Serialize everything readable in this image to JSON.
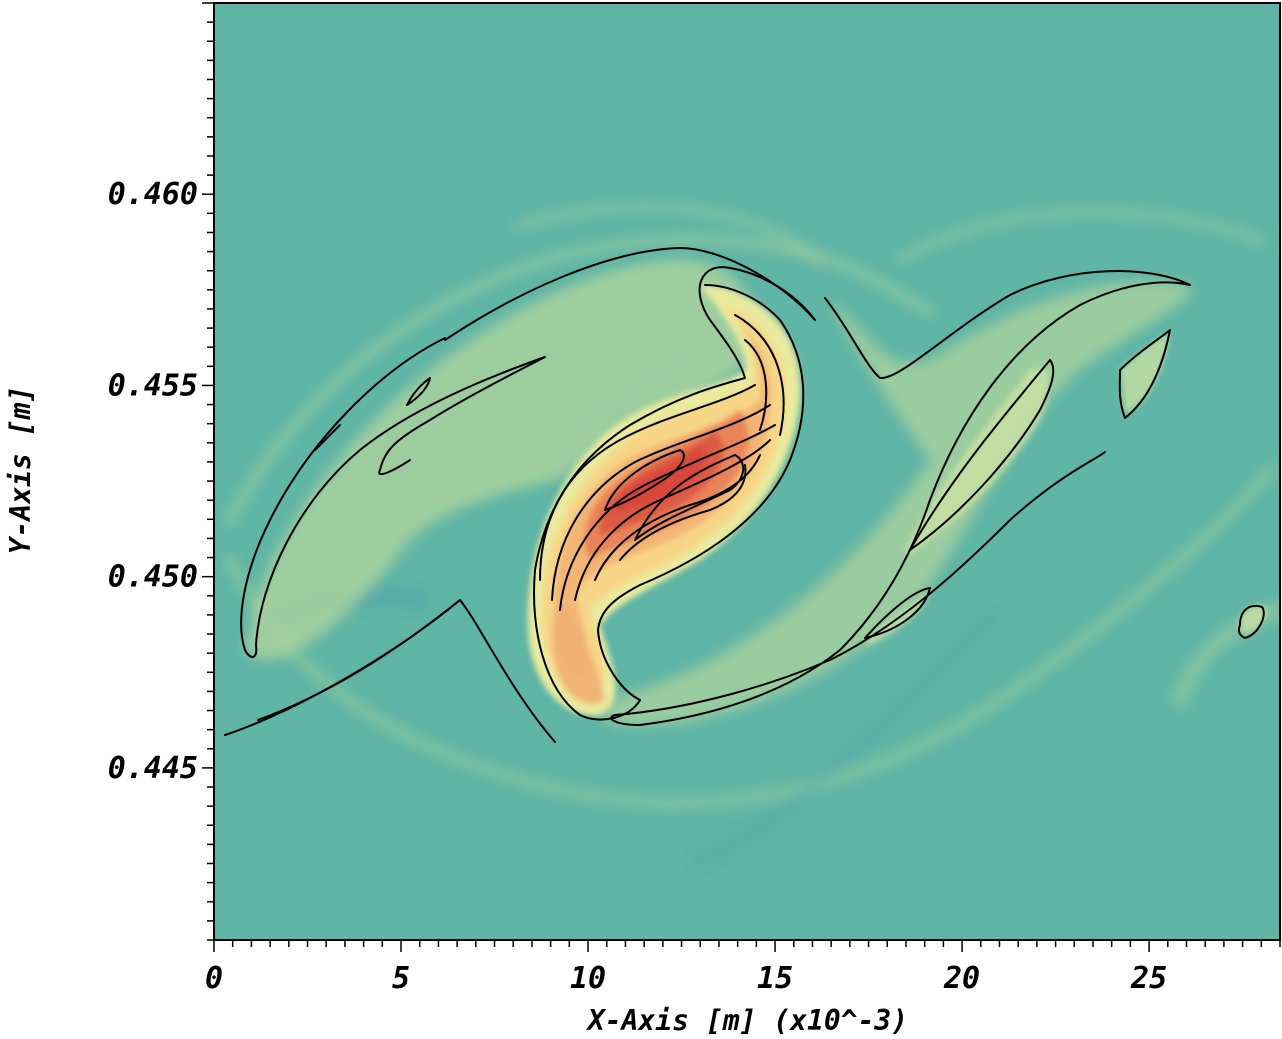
{
  "chart_data": {
    "type": "heatmap",
    "title": "",
    "xlabel": "X-Axis [m] (x10^-3)",
    "ylabel": "Y-Axis [m]",
    "xlim": [
      0,
      28.5
    ],
    "ylim": [
      0.4405,
      0.465
    ],
    "x_ticks": [
      0,
      5,
      10,
      15,
      20,
      25
    ],
    "x_tick_labels": [
      "0",
      "5",
      "10",
      "15",
      "20",
      "25"
    ],
    "y_ticks": [
      0.445,
      0.45,
      0.455,
      0.46
    ],
    "y_tick_labels": [
      "0.445",
      "0.450",
      "0.455",
      "0.460"
    ],
    "colormap": "spectral-like (teal background to red peak)",
    "background_color": "#5fb5a6",
    "peak_color": "#d9473a",
    "contour_color": "#000000",
    "features": [
      {
        "name": "core",
        "cx": 12.2,
        "cy": 0.4515,
        "rx": 3.4,
        "ry": 0.0042,
        "angle_deg": 48
      }
    ]
  }
}
